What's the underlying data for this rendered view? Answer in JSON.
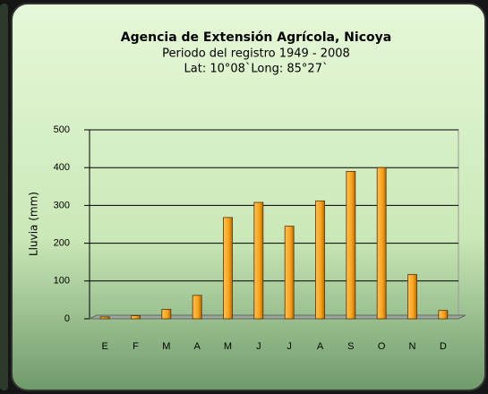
{
  "chart_data": {
    "type": "bar",
    "title": "Agencia de Extensión Agrícola, Nicoya",
    "subtitle_lines": [
      "Periodo del registro 1949 - 2008",
      "Lat: 10°08`Long: 85°27`"
    ],
    "y_label": "Lluvia (mm)",
    "categories": [
      "E",
      "F",
      "M",
      "A",
      "M",
      "J",
      "J",
      "A",
      "S",
      "O",
      "N",
      "D"
    ],
    "values": [
      5,
      8,
      25,
      62,
      268,
      308,
      245,
      312,
      390,
      400,
      117,
      22
    ],
    "color": "#f7a21c",
    "ylim": [
      0,
      500
    ],
    "yticks": [
      0,
      100,
      200,
      300,
      400,
      500
    ],
    "grid": true
  }
}
